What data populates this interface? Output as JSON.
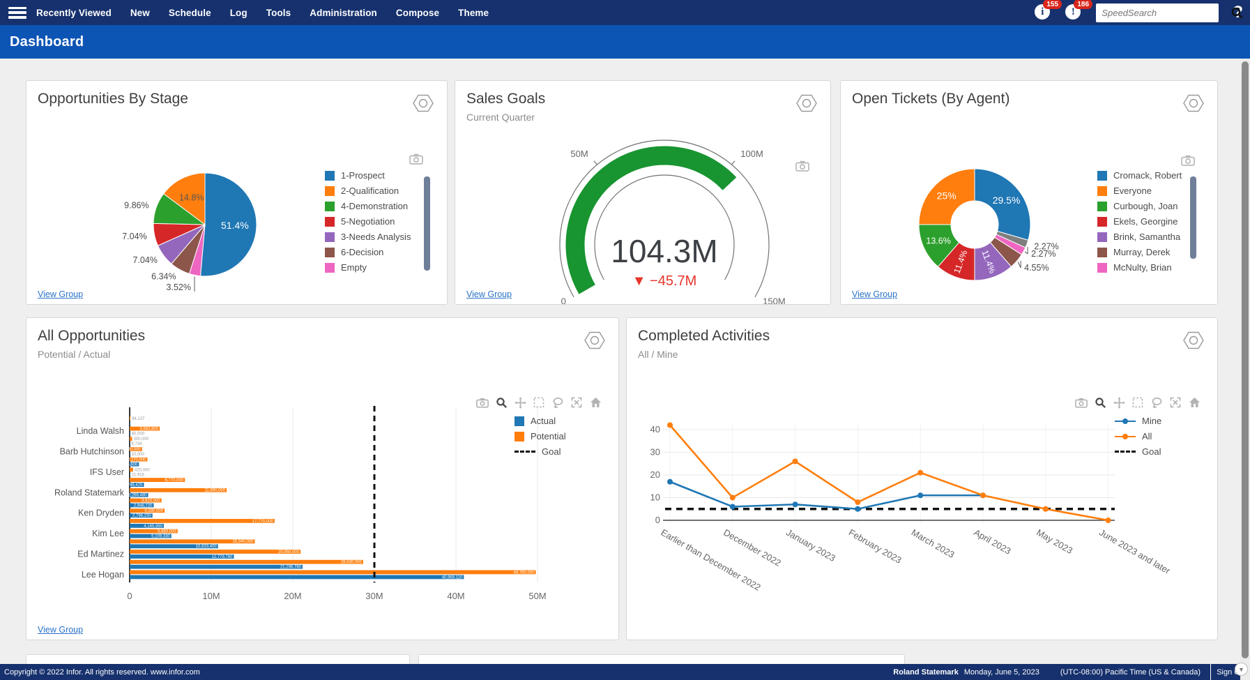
{
  "nav": {
    "items": [
      "Recently Viewed",
      "New",
      "Schedule",
      "Log",
      "Tools",
      "Administration",
      "Compose",
      "Theme"
    ],
    "notifications_count": "155",
    "alerts_count": "186",
    "search_placeholder": "SpeedSearch",
    "help_label": "?"
  },
  "page": {
    "title": "Dashboard"
  },
  "widgets": {
    "opportunities_by_stage": {
      "title": "Opportunities By Stage",
      "view_group": "View Group",
      "legend": [
        {
          "label": "1-Prospect",
          "color": "#1f77b4",
          "type": "box"
        },
        {
          "label": "2-Qualification",
          "color": "#ff7e0e",
          "type": "box"
        },
        {
          "label": "4-Demonstration",
          "color": "#2ca02c",
          "type": "box"
        },
        {
          "label": "5-Negotiation",
          "color": "#d62728",
          "type": "box"
        },
        {
          "label": "3-Needs Analysis",
          "color": "#9467bd",
          "type": "box"
        },
        {
          "label": "6-Decision",
          "color": "#8c564b",
          "type": "box"
        },
        {
          "label": "Empty",
          "color": "#ee66c1",
          "type": "box"
        }
      ]
    },
    "sales_goals": {
      "title": "Sales Goals",
      "subtitle": "Current Quarter",
      "view_group": "View Group"
    },
    "open_tickets": {
      "title": "Open Tickets (By Agent)",
      "view_group": "View Group",
      "legend": [
        {
          "label": "Cromack, Robert",
          "color": "#1f77b4",
          "type": "box"
        },
        {
          "label": "Everyone",
          "color": "#ff7e0e",
          "type": "box"
        },
        {
          "label": "Curbough, Joan",
          "color": "#2ca02c",
          "type": "box"
        },
        {
          "label": "Ekels, Georgine",
          "color": "#d62728",
          "type": "box"
        },
        {
          "label": "Brink, Samantha",
          "color": "#9467bd",
          "type": "box"
        },
        {
          "label": "Murray, Derek",
          "color": "#8c564b",
          "type": "box"
        },
        {
          "label": "McNulty, Brian",
          "color": "#ee66c1",
          "type": "box"
        }
      ]
    },
    "all_opportunities": {
      "title": "All Opportunities",
      "subtitle": "Potential / Actual",
      "view_group": "View Group",
      "legend": [
        {
          "label": "Actual",
          "color": "#1f77b4",
          "type": "box"
        },
        {
          "label": "Potential",
          "color": "#ff7e0e",
          "type": "box"
        },
        {
          "label": "Goal",
          "color": "#111111",
          "type": "dash"
        }
      ]
    },
    "completed_activities": {
      "title": "Completed Activities",
      "subtitle": "All / Mine",
      "legend": [
        {
          "label": "Mine",
          "color": "#1f77b4",
          "type": "line"
        },
        {
          "label": "All",
          "color": "#ff7e0e",
          "type": "line"
        },
        {
          "label": "Goal",
          "color": "#111111",
          "type": "dash"
        }
      ]
    }
  },
  "chart_data": [
    {
      "type": "pie",
      "title": "Opportunities By Stage",
      "slices": [
        {
          "label": "1-Prospect",
          "pct": 51.4,
          "color": "#1f77b4",
          "text": "51.4%",
          "pos": "in"
        },
        {
          "label": "Empty",
          "pct": 3.52,
          "color": "#ee66c1",
          "text": "3.52%",
          "pos": "out-line"
        },
        {
          "label": "6-Decision",
          "pct": 6.34,
          "color": "#8c564b",
          "text": "6.34%",
          "pos": "out"
        },
        {
          "label": "3-Needs Analysis",
          "pct": 7.04,
          "color": "#9467bd",
          "text": "7.04%",
          "pos": "out"
        },
        {
          "label": "5-Negotiation",
          "pct": 7.04,
          "color": "#d62728",
          "text": "7.04%",
          "pos": "out"
        },
        {
          "label": "4-Demonstration",
          "pct": 9.86,
          "color": "#2ca02c",
          "text": "9.86%",
          "pos": "out"
        },
        {
          "label": "2-Qualification",
          "pct": 14.8,
          "color": "#ff7e0e",
          "text": "14.8%",
          "pos": "in-dark"
        }
      ]
    },
    {
      "type": "gauge",
      "title": "Sales Goals",
      "min": 0,
      "max": 150,
      "value": 104.3,
      "value_label": "104.3M",
      "delta_label": "▼ −45.7M",
      "bar_color": "#189430",
      "delta_color": "#e8352b",
      "ticks": [
        {
          "v": 0,
          "label": "0"
        },
        {
          "v": 50,
          "label": "50M"
        },
        {
          "v": 100,
          "label": "100M"
        },
        {
          "v": 150,
          "label": "150M"
        }
      ]
    },
    {
      "type": "donut",
      "title": "Open Tickets (By Agent)",
      "slices": [
        {
          "label": "Cromack, Robert",
          "pct": 29.5,
          "color": "#1f77b4",
          "text": "29.5%",
          "pos": "in"
        },
        {
          "label": "",
          "pct": 2.27,
          "color": "#7f7f7f",
          "text": "2.27%",
          "pos": "out"
        },
        {
          "label": "McNulty, Brian",
          "pct": 2.27,
          "color": "#ee66c1",
          "text": "2.27%",
          "pos": "out-line"
        },
        {
          "label": "Murray, Derek",
          "pct": 4.55,
          "color": "#8c564b",
          "text": "4.55%",
          "pos": "out-line"
        },
        {
          "label": "Brink, Samantha",
          "pct": 11.4,
          "color": "#9467bd",
          "text": "11.4%",
          "pos": "in-rot"
        },
        {
          "label": "Ekels, Georgine",
          "pct": 11.4,
          "color": "#d62728",
          "text": "11.4%",
          "pos": "in-rot"
        },
        {
          "label": "Curbough, Joan",
          "pct": 13.6,
          "color": "#2ca02c",
          "text": "13.6%",
          "pos": "in"
        },
        {
          "label": "Everyone",
          "pct": 25,
          "color": "#ff7e0e",
          "text": "25%",
          "pos": "in"
        }
      ]
    },
    {
      "type": "bar",
      "title": "All Opportunities",
      "orientation": "horizontal",
      "xlabel_ticks": [
        "0",
        "10M",
        "20M",
        "30M",
        "40M",
        "50M"
      ],
      "xmax_millions": 50,
      "goal_millions": 30,
      "categories": [
        "",
        "Linda Walsh",
        "",
        "Barb Hutchinson",
        "",
        "IFS User",
        "",
        "Roland Statemark",
        "",
        "Ken Dryden",
        "",
        "Kim Lee",
        "",
        "Ed Martinez",
        "",
        "Lee Hogan"
      ],
      "series": [
        {
          "name": "Potential",
          "color": "#ff7e0e",
          "values": [
            94137,
            3683800,
            300000,
            1520000,
            2170000,
            420000,
            6770000,
            11890000,
            3910000,
            4280000,
            17770000,
            5880000,
            15340000,
            20950000,
            28630000,
            49790000
          ]
        },
        {
          "name": "Actual",
          "color": "#1f77b4",
          "values": [
            0,
            60000,
            6734,
            10000,
            1138800,
            21916,
            1748425,
            2266480,
            2948720,
            2796230,
            4185990,
            5109330,
            10833400,
            12779760,
            21196780,
            40969110
          ]
        }
      ]
    },
    {
      "type": "line",
      "title": "Completed Activities",
      "x": [
        "Earlier than December 2022",
        "December 2022",
        "January 2023",
        "February 2023",
        "March 2023",
        "April 2023",
        "May 2023",
        "June 2023 and later"
      ],
      "yticks": [
        0,
        10,
        20,
        30,
        40
      ],
      "ylim": [
        0,
        45
      ],
      "goal": 5,
      "series": [
        {
          "name": "Mine",
          "color": "#1f77b4",
          "values": [
            17,
            6,
            7,
            5,
            11,
            11,
            null,
            null
          ]
        },
        {
          "name": "All",
          "color": "#ff7e0e",
          "values": [
            42,
            10,
            26,
            8,
            21,
            11,
            5,
            0
          ]
        }
      ]
    }
  ],
  "footer": {
    "copyright": "Copyright © 2022 Infor. All rights reserved. www.infor.com",
    "user": "Roland Statemark",
    "date": "Monday, June 5, 2023",
    "timezone": "(UTC-08:00) Pacific Time (US & Canada)",
    "sign_off": "Sign Off"
  }
}
